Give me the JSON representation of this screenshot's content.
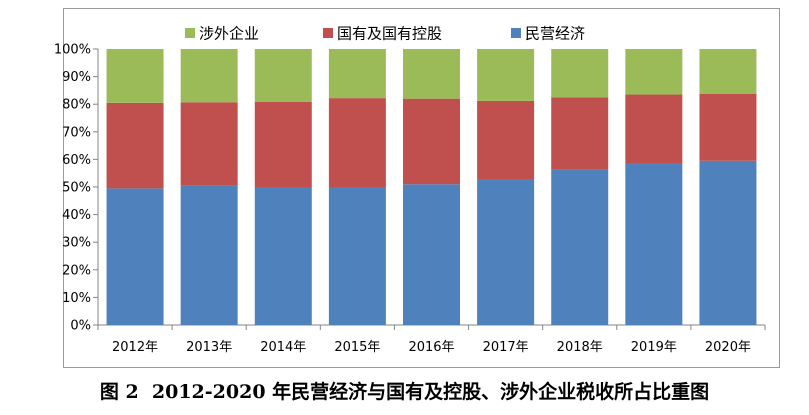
{
  "chart_data": {
    "type": "bar",
    "stacked": true,
    "percent_stacked": true,
    "categories": [
      "2012年",
      "2013年",
      "2014年",
      "2015年",
      "2016年",
      "2017年",
      "2018年",
      "2019年",
      "2020年"
    ],
    "series": [
      {
        "name": "民营经济",
        "color": "#4f81bd",
        "values": [
          49.5,
          50.5,
          50.0,
          50.0,
          51.0,
          52.7,
          56.5,
          58.5,
          59.5
        ]
      },
      {
        "name": "国有及国有控股",
        "color": "#c0504d",
        "values": [
          31.0,
          30.2,
          30.8,
          32.2,
          31.0,
          28.5,
          26.0,
          25.0,
          24.2
        ]
      },
      {
        "name": "涉外企业",
        "color": "#9bbb59",
        "values": [
          19.5,
          19.3,
          19.2,
          17.8,
          18.0,
          18.8,
          17.5,
          16.5,
          16.3
        ]
      }
    ],
    "y_ticks": [
      "0%",
      "10%",
      "20%",
      "30%",
      "40%",
      "50%",
      "60%",
      "70%",
      "80%",
      "90%",
      "100%"
    ],
    "ylim": [
      0,
      100
    ],
    "legend_position": "top",
    "legend_order": [
      "涉外企业",
      "国有及国有控股",
      "民营经济"
    ],
    "grid": false
  },
  "caption": "图 2  2012-2020 年民营经济与国有及控股、涉外企业税收所占比重图"
}
